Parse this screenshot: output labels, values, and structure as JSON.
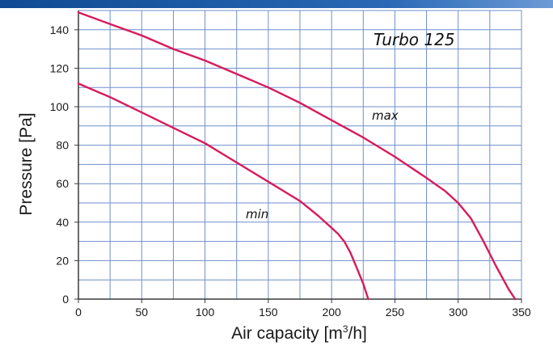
{
  "chart_data": {
    "type": "line",
    "title": "Turbo 125",
    "xlabel": "Air capacity [m",
    "xlabel_sup": "3",
    "xlabel_tail": "/h]",
    "ylabel": "Pressure [Pa]",
    "xlim": [
      0,
      350
    ],
    "ylim": [
      0,
      150
    ],
    "x_ticks": [
      "0",
      "50",
      "100",
      "150",
      "200",
      "250",
      "300",
      "350"
    ],
    "y_ticks": [
      "0",
      "20",
      "40",
      "60",
      "80",
      "100",
      "120",
      "140"
    ],
    "grid": true,
    "x_minor_step": 25,
    "y_minor_step": 10,
    "series": [
      {
        "name": "max",
        "x": [
          0,
          25,
          50,
          75,
          100,
          125,
          150,
          175,
          200,
          225,
          250,
          275,
          290,
          300,
          310,
          320,
          330,
          340,
          345
        ],
        "y": [
          149,
          143,
          137,
          130,
          124,
          117,
          110,
          102,
          93,
          84,
          74,
          63,
          56,
          50,
          42,
          30,
          17,
          5,
          0
        ]
      },
      {
        "name": "min",
        "x": [
          0,
          25,
          50,
          75,
          100,
          125,
          150,
          175,
          190,
          200,
          205,
          210,
          215,
          220,
          225,
          229
        ],
        "y": [
          112,
          105,
          97,
          89,
          81,
          71,
          61,
          51,
          43,
          37,
          34,
          30,
          24,
          16,
          8,
          0
        ]
      }
    ],
    "colors": {
      "curve": "#d81b5a",
      "grid": "#6f8fcc",
      "banner": "#1f5aa6"
    }
  }
}
